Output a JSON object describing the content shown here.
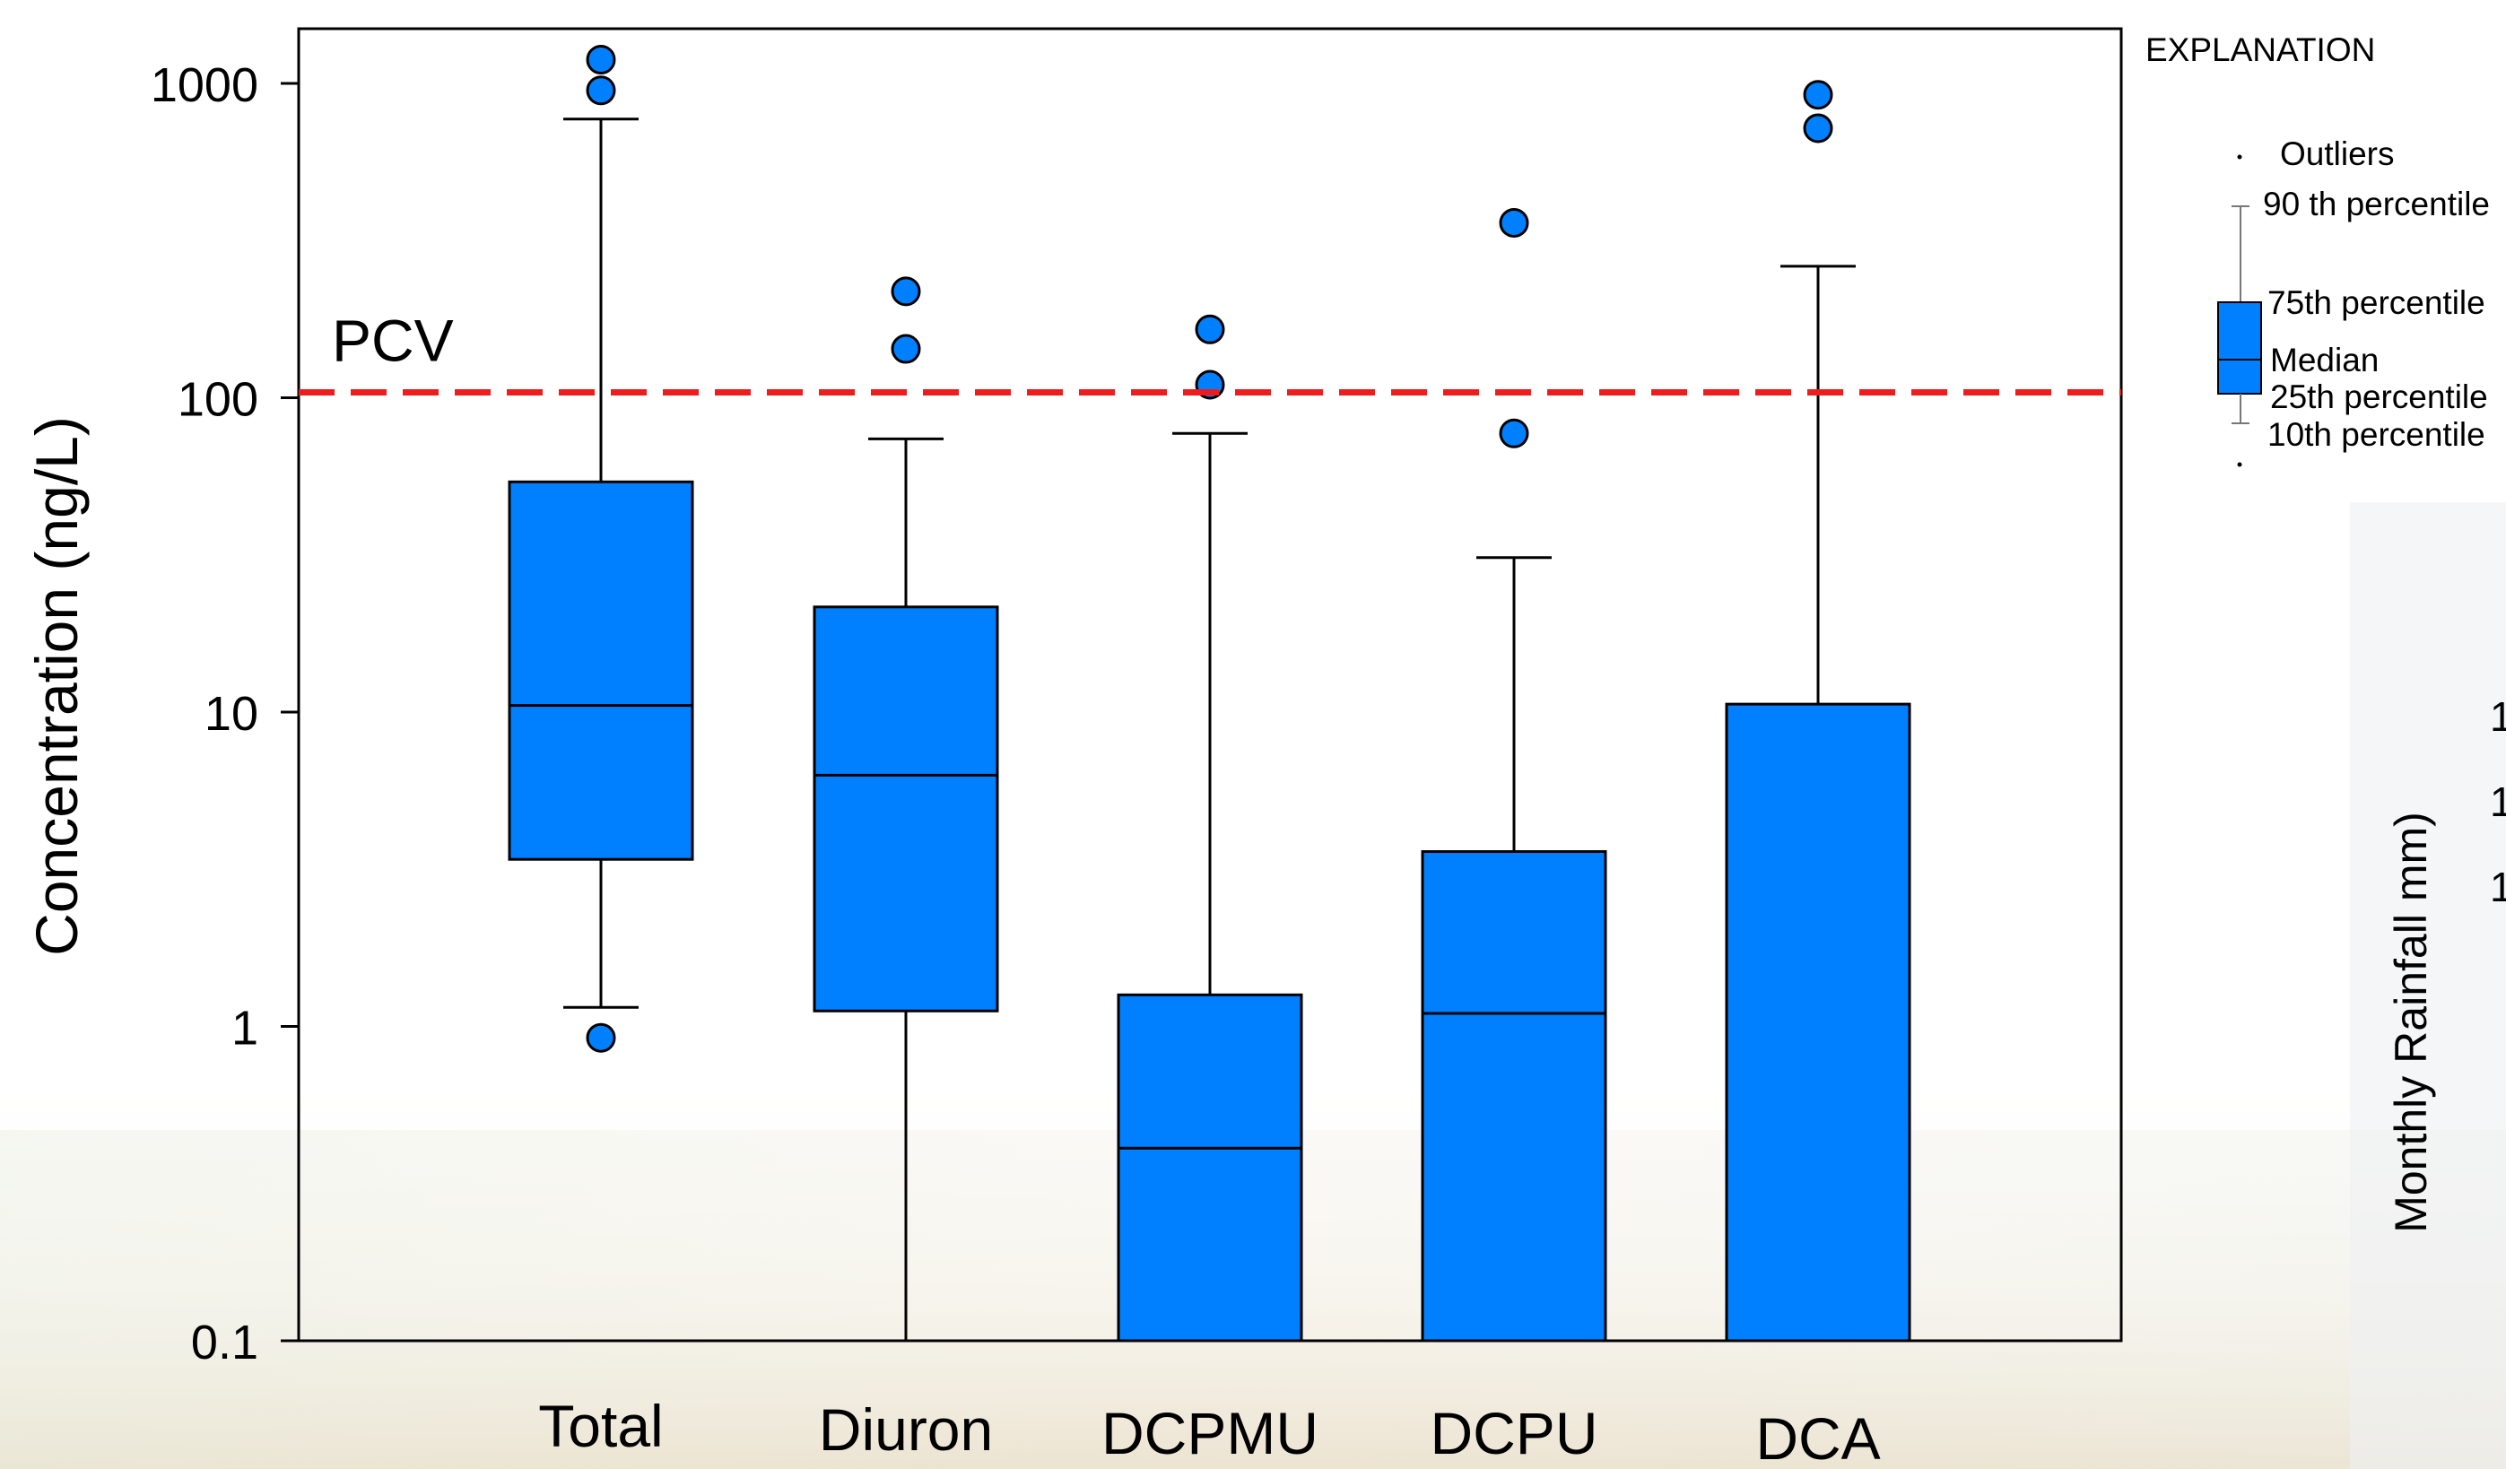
{
  "chart_data": {
    "type": "box",
    "y_scale": "log",
    "ylim": [
      0.1,
      1000
    ],
    "ylabel": "Concentration (ng/L)",
    "ytick_labels": [
      "1000",
      "100",
      "10",
      "1",
      "0.1"
    ],
    "ytick_values": [
      1000,
      100,
      10,
      1,
      0.1
    ],
    "categories": [
      "Total",
      "Diuron",
      "DCPMU",
      "DCPU",
      "DCA"
    ],
    "boxes": [
      {
        "name": "Total",
        "p10": 1.15,
        "q1": 3.4,
        "median": 10.5,
        "q3": 54,
        "p90": 770,
        "outliers": [
          0.92,
          950,
          1190
        ]
      },
      {
        "name": "Diuron",
        "p10": 0.1,
        "q1": 1.12,
        "median": 6.3,
        "q3": 21.6,
        "p90": 74,
        "outliers": [
          143,
          218
        ]
      },
      {
        "name": "DCPMU",
        "p10": 0.1,
        "q1": 0.1,
        "median": 0.41,
        "q3": 1.26,
        "p90": 77,
        "outliers": [
          110,
          165
        ]
      },
      {
        "name": "DCPU",
        "p10": 0.1,
        "q1": 0.1,
        "median": 1.1,
        "q3": 3.6,
        "p90": 31,
        "outliers": [
          77,
          360
        ]
      },
      {
        "name": "DCA",
        "p10": 0.1,
        "q1": 0.1,
        "median": 0.1,
        "q3": 10.6,
        "p90": 262,
        "outliers": [
          720,
          920
        ]
      }
    ],
    "reference_line": {
      "label": "PCV",
      "value": 104
    },
    "box_color": "#0080ff",
    "reference_color": "#ee1c1c"
  },
  "legend": {
    "title": "EXPLANATION",
    "outliers": "Outliers",
    "p90": "90 th percentile",
    "q3": "75th percentile",
    "median": "Median",
    "q1": "25th percentile",
    "p10": "10th percentile"
  },
  "secondary_axis": {
    "label": "Monthly Rainfall mm)",
    "tick_fragments": [
      "1",
      "1",
      "1"
    ]
  }
}
